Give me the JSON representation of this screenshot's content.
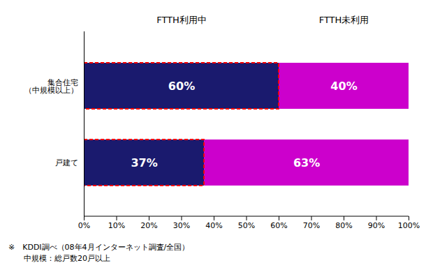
{
  "chart_data": {
    "type": "bar",
    "orientation": "horizontal",
    "stacked": true,
    "data_labels": true,
    "legend": "top",
    "grid": false,
    "categories": [
      "集合住宅\n（中規模以上）",
      "戸建て"
    ],
    "series": [
      {
        "name": "FTTH利用中",
        "color": "#1a1a6e",
        "values": [
          60,
          37
        ],
        "value_labels": [
          "60%",
          "37%"
        ]
      },
      {
        "name": "FTTH未利用",
        "color": "#cc00cc",
        "values": [
          40,
          63
        ],
        "value_labels": [
          "40%",
          "63%"
        ]
      }
    ],
    "xlim": [
      0,
      100
    ],
    "xticks": [
      {
        "value": 0,
        "label": "0%"
      },
      {
        "value": 10,
        "label": "10%"
      },
      {
        "value": 20,
        "label": "20%"
      },
      {
        "value": 30,
        "label": "30%"
      },
      {
        "value": 40,
        "label": "40%"
      },
      {
        "value": 50,
        "label": "50%"
      },
      {
        "value": 60,
        "label": "60%"
      },
      {
        "value": 70,
        "label": "70%"
      },
      {
        "value": 80,
        "label": "80%"
      },
      {
        "value": 90,
        "label": "90%"
      },
      {
        "value": 100,
        "label": "100%"
      }
    ],
    "annotations": [
      "※　KDDI調べ（08年4月インターネット調査/全国）",
      "　　中規模：総戸数20戸以上"
    ]
  }
}
